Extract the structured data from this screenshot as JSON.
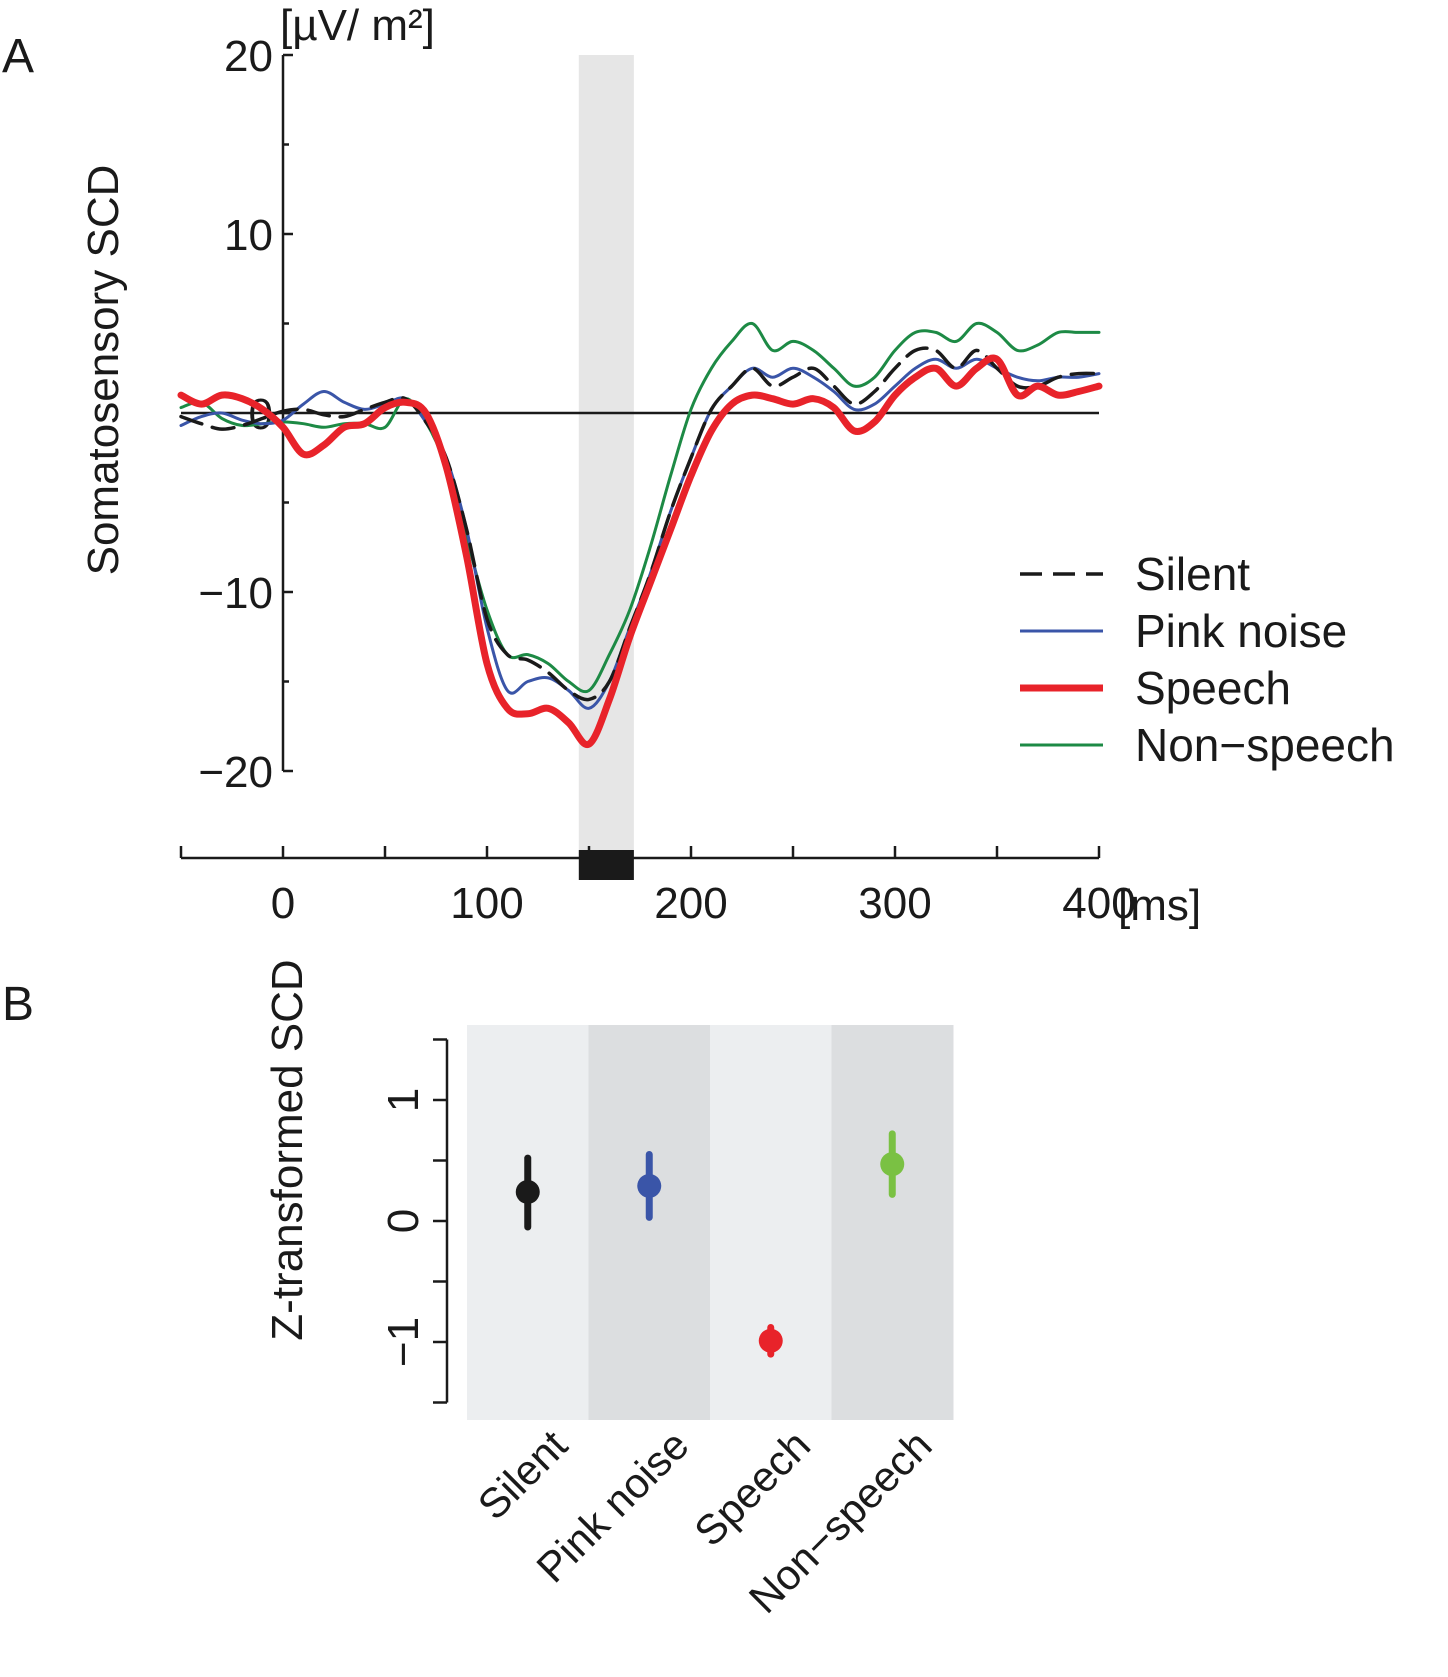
{
  "figure": {
    "panel_a_label": "A",
    "panel_b_label": "B"
  },
  "chart_data": [
    {
      "type": "line",
      "panel": "A",
      "ylabel": "Somatosensory SCD",
      "yunit": "[µV/ m²]",
      "xunit": "[ms]",
      "xlim": [
        -50,
        400
      ],
      "ylim": [
        -20,
        20
      ],
      "xticks": [
        0,
        100,
        200,
        300,
        400
      ],
      "xticks_minor": [
        -50,
        50,
        150,
        250,
        350
      ],
      "yticks": [
        20,
        10,
        0,
        -10,
        -20
      ],
      "yticks_labels": [
        "20",
        "10",
        "0",
        "−10",
        "−20"
      ],
      "shaded_window": [
        145,
        172
      ],
      "grid": false,
      "legend_position": "right",
      "series": [
        {
          "name": "Silent",
          "color": "#1a1a1a",
          "style": "dashed",
          "x": [
            -50,
            -40,
            -30,
            -20,
            -10,
            0,
            10,
            20,
            30,
            40,
            50,
            60,
            70,
            80,
            90,
            100,
            110,
            120,
            130,
            140,
            150,
            160,
            170,
            180,
            190,
            200,
            210,
            220,
            230,
            240,
            250,
            260,
            270,
            280,
            290,
            300,
            310,
            320,
            330,
            340,
            350,
            360,
            370,
            380,
            390,
            400
          ],
          "y": [
            -0.2,
            -0.6,
            -0.9,
            -0.7,
            -0.3,
            0.1,
            0.2,
            -0.1,
            -0.2,
            0.2,
            0.6,
            0.8,
            -0.5,
            -2.5,
            -6.5,
            -11.5,
            -13.5,
            -13.8,
            -14.5,
            -15.5,
            -16.0,
            -15.0,
            -12.0,
            -9.0,
            -5.5,
            -2.5,
            0.2,
            1.5,
            2.5,
            1.5,
            2.0,
            2.5,
            1.5,
            0.5,
            1.2,
            2.5,
            3.5,
            3.5,
            2.5,
            3.5,
            2.5,
            1.5,
            1.5,
            2.0,
            2.2,
            2.2
          ]
        },
        {
          "name": "Pink noise",
          "color": "#3a55a8",
          "style": "solid",
          "x": [
            -50,
            -40,
            -30,
            -20,
            -10,
            0,
            10,
            20,
            30,
            40,
            50,
            60,
            70,
            80,
            90,
            100,
            110,
            120,
            130,
            140,
            150,
            160,
            170,
            180,
            190,
            200,
            210,
            220,
            230,
            240,
            250,
            260,
            270,
            280,
            290,
            300,
            310,
            320,
            330,
            340,
            350,
            360,
            370,
            380,
            390,
            400
          ],
          "y": [
            -0.7,
            -0.2,
            0.0,
            -0.4,
            -0.6,
            -0.4,
            0.5,
            1.2,
            0.6,
            0.2,
            0.5,
            0.8,
            -0.5,
            -2.5,
            -6.5,
            -12.0,
            -15.5,
            -15.0,
            -14.8,
            -15.5,
            -16.5,
            -15.0,
            -12.0,
            -9.0,
            -5.5,
            -2.5,
            0.2,
            1.5,
            2.5,
            2.0,
            2.5,
            2.0,
            1.2,
            0.2,
            0.5,
            1.5,
            2.5,
            3.0,
            2.5,
            3.0,
            2.5,
            2.0,
            1.8,
            2.0,
            2.0,
            2.2
          ]
        },
        {
          "name": "Speech",
          "color": "#e8232a",
          "style": "solid-thick",
          "x": [
            -50,
            -40,
            -30,
            -20,
            -10,
            0,
            10,
            20,
            30,
            40,
            50,
            60,
            70,
            80,
            90,
            100,
            110,
            120,
            130,
            140,
            150,
            160,
            170,
            180,
            190,
            200,
            210,
            220,
            230,
            240,
            250,
            260,
            270,
            280,
            290,
            300,
            310,
            320,
            330,
            340,
            350,
            360,
            370,
            380,
            390,
            400
          ],
          "y": [
            1.0,
            0.5,
            1.0,
            0.8,
            0.2,
            -0.8,
            -2.3,
            -1.8,
            -0.8,
            -0.6,
            0.3,
            0.6,
            0.0,
            -3.0,
            -8.0,
            -14.0,
            -16.5,
            -16.8,
            -16.5,
            -17.3,
            -18.5,
            -16.0,
            -12.5,
            -9.5,
            -6.5,
            -3.5,
            -1.0,
            0.5,
            1.0,
            0.8,
            0.5,
            0.8,
            0.3,
            -1.0,
            -0.5,
            1.0,
            2.0,
            2.5,
            1.5,
            2.5,
            3.0,
            1.0,
            1.5,
            1.0,
            1.2,
            1.5
          ]
        },
        {
          "name": "Non−speech",
          "color": "#1d8a45",
          "style": "solid",
          "x": [
            -50,
            -40,
            -30,
            -20,
            -10,
            0,
            10,
            20,
            30,
            40,
            50,
            60,
            70,
            80,
            90,
            100,
            110,
            120,
            130,
            140,
            150,
            160,
            170,
            180,
            190,
            200,
            210,
            220,
            230,
            240,
            250,
            260,
            270,
            280,
            290,
            300,
            310,
            320,
            330,
            340,
            350,
            360,
            370,
            380,
            390,
            400
          ],
          "y": [
            0.3,
            0.6,
            -0.3,
            -0.7,
            -0.6,
            -0.5,
            -0.6,
            -0.8,
            -0.6,
            -0.6,
            -0.8,
            0.8,
            -0.5,
            -3.0,
            -7.0,
            -11.0,
            -13.5,
            -13.5,
            -14.0,
            -15.0,
            -15.5,
            -13.5,
            -11.0,
            -7.5,
            -3.5,
            0.2,
            2.5,
            4.0,
            5.0,
            3.5,
            4.0,
            3.5,
            2.5,
            1.5,
            2.0,
            3.5,
            4.5,
            4.5,
            4.0,
            5.0,
            4.5,
            3.5,
            3.8,
            4.5,
            4.5,
            4.5
          ]
        }
      ]
    },
    {
      "type": "scatter",
      "panel": "B",
      "ylabel": "Z-transformed SCD",
      "categories": [
        "Silent",
        "Pink noise",
        "Speech",
        "Non−speech"
      ],
      "ylim": [
        -1.5,
        1.5
      ],
      "yticks": [
        1,
        0,
        -1
      ],
      "yticks_labels": [
        "1",
        "0",
        "−1"
      ],
      "grid": false,
      "points": [
        {
          "category": "Silent",
          "value": 0.24,
          "err_low": -0.05,
          "err_high": 0.52,
          "color": "#1a1a1a"
        },
        {
          "category": "Pink noise",
          "value": 0.29,
          "err_low": 0.03,
          "err_high": 0.55,
          "color": "#3a55a8"
        },
        {
          "category": "Speech",
          "value": -0.99,
          "err_low": -1.1,
          "err_high": -0.88,
          "color": "#e8232a"
        },
        {
          "category": "Non−speech",
          "value": 0.47,
          "err_low": 0.22,
          "err_high": 0.72,
          "color": "#7ac143"
        }
      ],
      "band_colors": [
        "#eceef0",
        "#dcdee0",
        "#eceef0",
        "#dcdee0"
      ]
    }
  ]
}
